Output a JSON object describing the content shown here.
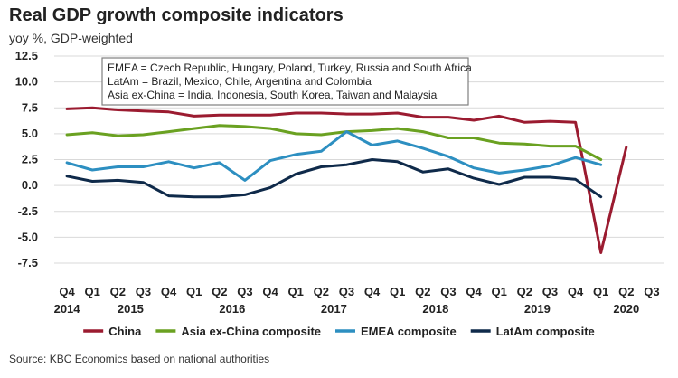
{
  "chart_data": {
    "type": "line",
    "title": "Real GDP growth composite indicators",
    "subtitle": "yoy %, GDP-weighted",
    "ylim": [
      -7.5,
      12.5
    ],
    "yticks": [
      "12.5",
      "10.0",
      "7.5",
      "5.0",
      "2.5",
      "0.0",
      "-2.5",
      "-5.0",
      "-7.5"
    ],
    "ytick_values": [
      12.5,
      10.0,
      7.5,
      5.0,
      2.5,
      0.0,
      -2.5,
      -5.0,
      -7.5
    ],
    "quarter_labels": [
      "Q4",
      "Q1",
      "Q2",
      "Q3",
      "Q4",
      "Q1",
      "Q2",
      "Q3",
      "Q4",
      "Q1",
      "Q2",
      "Q3",
      "Q4",
      "Q1",
      "Q2",
      "Q3",
      "Q4",
      "Q1",
      "Q2",
      "Q3",
      "Q4",
      "Q1",
      "Q2",
      "Q3"
    ],
    "year_labels": [
      {
        "label": "2014",
        "at_index": 0
      },
      {
        "label": "2015",
        "at_index": 2.5
      },
      {
        "label": "2016",
        "at_index": 6.5
      },
      {
        "label": "2017",
        "at_index": 10.5
      },
      {
        "label": "2018",
        "at_index": 14.5
      },
      {
        "label": "2019",
        "at_index": 18.5
      },
      {
        "label": "2020",
        "at_index": 22
      }
    ],
    "grid": "horizontal",
    "legend_position": "bottom",
    "series": [
      {
        "name": "China",
        "color": "#9b1b30",
        "values": [
          7.4,
          7.5,
          7.3,
          7.2,
          7.1,
          6.7,
          6.8,
          6.8,
          6.8,
          7.0,
          7.0,
          6.9,
          6.9,
          7.0,
          6.6,
          6.6,
          6.3,
          6.7,
          6.1,
          6.2,
          6.1,
          -6.5,
          3.7,
          null
        ]
      },
      {
        "name": "Asia ex-China composite",
        "color": "#6aa121",
        "values": [
          4.9,
          5.1,
          4.8,
          4.9,
          5.2,
          5.5,
          5.8,
          5.7,
          5.5,
          5.0,
          4.9,
          5.2,
          5.3,
          5.5,
          5.2,
          4.6,
          4.6,
          4.1,
          4.0,
          3.8,
          3.8,
          2.5,
          null,
          null
        ]
      },
      {
        "name": "EMEA composite",
        "color": "#2d8fc1",
        "values": [
          2.2,
          1.5,
          1.8,
          1.8,
          2.3,
          1.7,
          2.2,
          0.5,
          2.4,
          3.0,
          3.3,
          5.2,
          3.9,
          4.3,
          3.6,
          2.8,
          1.7,
          1.2,
          1.5,
          1.9,
          2.7,
          2.0,
          null,
          null
        ]
      },
      {
        "name": "LatAm composite",
        "color": "#0f2a4a",
        "values": [
          0.9,
          0.4,
          0.5,
          0.3,
          -1.0,
          -1.1,
          -1.1,
          -0.9,
          -0.2,
          1.1,
          1.8,
          2.0,
          2.5,
          2.3,
          1.3,
          1.6,
          0.7,
          0.1,
          0.8,
          0.8,
          0.6,
          -1.1,
          null,
          null
        ]
      }
    ],
    "annotation": [
      "EMEA = Czech Republic, Hungary, Poland, Turkey, Russia and South Africa",
      "LatAm = Brazil, Mexico, Chile, Argentina and Colombia",
      "Asia ex-China = India, Indonesia, South Korea, Taiwan and Malaysia"
    ]
  },
  "source": "Source: KBC Economics based on national authorities"
}
